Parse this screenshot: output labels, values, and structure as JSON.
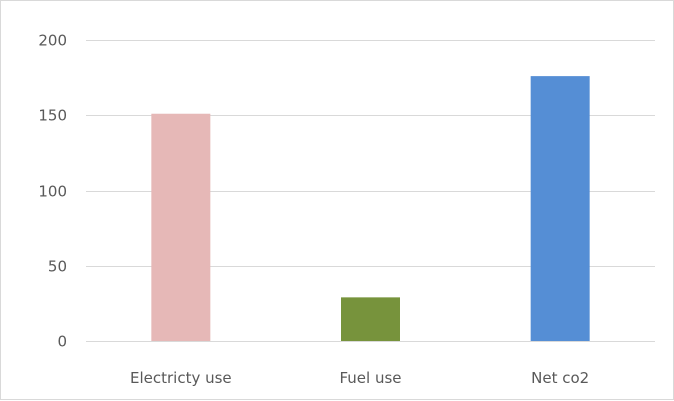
{
  "chart_data": {
    "type": "bar",
    "title": "",
    "xlabel": "",
    "ylabel": "",
    "categories": [
      "Electricty use",
      "Fuel use",
      "Net co2"
    ],
    "values": [
      151,
      29,
      176
    ],
    "colors": [
      "#e6b8b7",
      "#77933c",
      "#558ed5"
    ],
    "ylim": [
      0,
      200
    ],
    "yticks": [
      0,
      50,
      100,
      150,
      200
    ],
    "grid": true,
    "legend": "none"
  }
}
